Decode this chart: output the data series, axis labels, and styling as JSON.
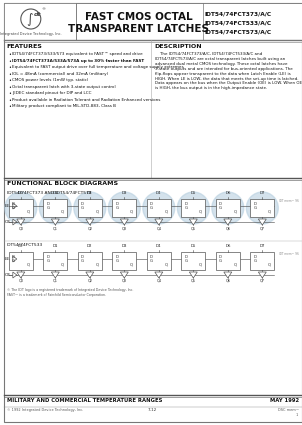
{
  "title_main": "FAST CMOS OCTAL\nTRANSPARENT LATCHES",
  "part_numbers": [
    "IDT54/74FCT373/A/C",
    "IDT54/74FCT533/A/C",
    "IDT54/74FCT573/A/C"
  ],
  "company": "Integrated Device Technology, Inc.",
  "features_title": "FEATURES",
  "features": [
    "IDT54/74FCT373/533/573 equivalent to FAST™ speed and drive",
    "IDT54/74FCT373A/533A/573A up to 30% faster than FAST",
    "Equivalent to FAST output drive over full temperature and voltage supply extremes",
    "IOL = 48mA (commercial) and 32mA (military)",
    "CMOS power levels (1mW typ. static)",
    "Octal transparent latch with 3-state output control",
    "JEDEC standard pinout for DIP and LCC",
    "Product available in Radiation Tolerant and Radiation Enhanced versions",
    "Military product compliant to MIL-STD-883, Class B"
  ],
  "feature_bold": [
    false,
    true,
    false,
    false,
    false,
    false,
    false,
    false,
    false
  ],
  "desc_title": "DESCRIPTION",
  "desc_text": "    The IDT54/74FCT373/A/C, IDT54/74FCT533/A/C and IDT54/74FCT573/A/C are octal transparent latches built using an advanced dual metal CMOS technology. These octal latches have 3-state outputs and are intended for bus-oriented applications. The flip-flops appear transparent to the data when Latch Enable (LE) is HIGH. When LE is LOW, the data that meets the set-up time is latched. Data appears on the bus when the Output Enable (OE) is LOW. When OE is HIGH, the bus output is in the high-impedance state.",
  "fbd_title": "FUNCTIONAL BLOCK DIAGRAMS",
  "fbd_sub1": "IDT54/74FCT373 AND IDT54/74FCT573",
  "fbd_sub2": "IDT54/74FCT533",
  "footer_left": "MILITARY AND COMMERCIAL TEMPERATURE RANGES",
  "footer_right": "MAY 1992",
  "footer_bottom_left": "© 1992 Integrated Device Technology, Inc.",
  "footer_bottom_center": "7-12",
  "footer_bottom_right": "DSC mem™\n         1",
  "bg_color": "#ffffff",
  "latch_blob_color": "#b8d0e0",
  "latch_fill": "#ffffff",
  "latch_ec": "#555555"
}
